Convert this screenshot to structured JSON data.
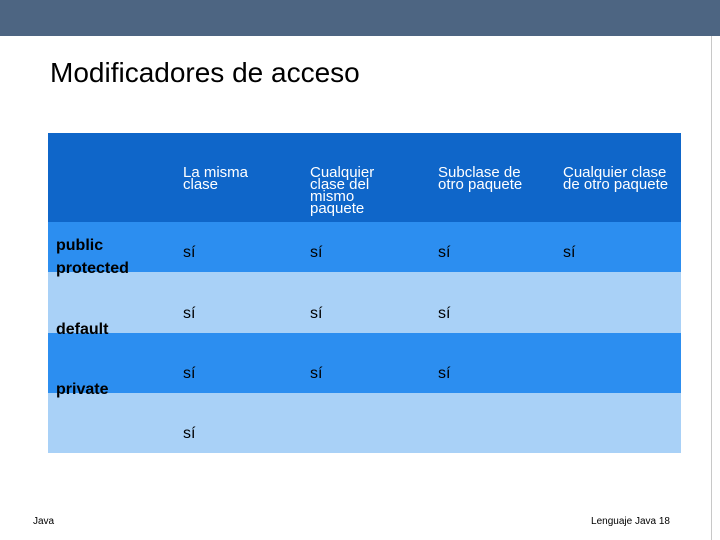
{
  "header": {
    "title": "Modificadores de acceso"
  },
  "table": {
    "columns": [
      "La misma clase",
      "Cualquier clase del mismo paquete",
      "Subclase de otro paquete",
      "Cualquier clase de otro paquete"
    ],
    "rows": [
      {
        "label": "public",
        "cells": [
          "sí",
          "sí",
          "sí",
          "sí"
        ]
      },
      {
        "label": "protected",
        "cells": [
          "sí",
          "sí",
          "sí"
        ]
      },
      {
        "label": "default",
        "cells": [
          "sí",
          "sí",
          "sí"
        ]
      },
      {
        "label": "private",
        "cells": [
          "sí"
        ]
      }
    ]
  },
  "footer": {
    "left": "Java",
    "right": "Lenguaje Java 18"
  }
}
